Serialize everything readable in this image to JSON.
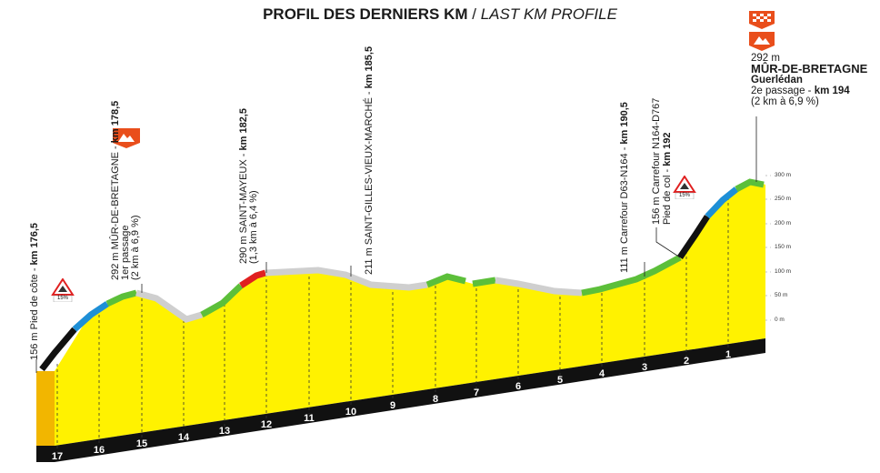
{
  "title": {
    "main": "PROFIL DES DERNIERS KM",
    "sep": " / ",
    "sub": "LAST KM PROFILE"
  },
  "finish": {
    "altitude": "292 m",
    "name": "MÛR-DE-BRETAGNE",
    "town": "Guerlédan",
    "passage_prefix": "2",
    "passage_suffix": "e passage - ",
    "passage_km": "km 194",
    "climb": "(2 km à 6,9 %)"
  },
  "labels": {
    "pied_cote": {
      "text": "156 m Pied de côte - ",
      "km": "km 176,5"
    },
    "mur1": {
      "line1_text": "292 m MÛR-DE-BRETAGNE - ",
      "line1_km": "km 178,5",
      "line2": "1er passage",
      "line3": "(2 km à 6,9 %)"
    },
    "saint_mayeux": {
      "line1_text": "290 m SAINT-MAYEUX - ",
      "line1_km": "km 182,5",
      "line2": "(1,3 km à 6,4 %)"
    },
    "saint_gilles": {
      "text": "211 m SAINT-GILLES-VIEUX-MARCHÉ - ",
      "km": "km 185,5"
    },
    "carrefour1": {
      "text": "111 m Carrefour D63-N164 - ",
      "km": "km 190,5"
    },
    "carrefour2": {
      "line1": "156 m Carrefour N164-D767",
      "line2_text": "Pied de col - ",
      "line2_km": "km 192"
    }
  },
  "grade_badges": [
    "15%",
    "15%"
  ],
  "altitude_axis": [
    "300 m",
    "250 m",
    "200 m",
    "150 m",
    "100 m",
    "50 m",
    "0 m"
  ],
  "km_markers": [
    "17",
    "16",
    "15",
    "14",
    "13",
    "12",
    "11",
    "10",
    "9",
    "8",
    "7",
    "6",
    "5",
    "4",
    "3",
    "2",
    "1"
  ],
  "colors": {
    "profile_fill": "#fff200",
    "profile_side": "#f2b600",
    "base": "#111111",
    "steep": "#111111",
    "hard": "#1e8fd6",
    "moderate": "#5cbf3a",
    "flat": "#cfcfcf",
    "summit": "#e02020",
    "icon": "#e94e1b"
  },
  "icons": [
    "mountain-icon",
    "checkered-flag-icon",
    "mountain-icon",
    "climb-warning-icon"
  ]
}
